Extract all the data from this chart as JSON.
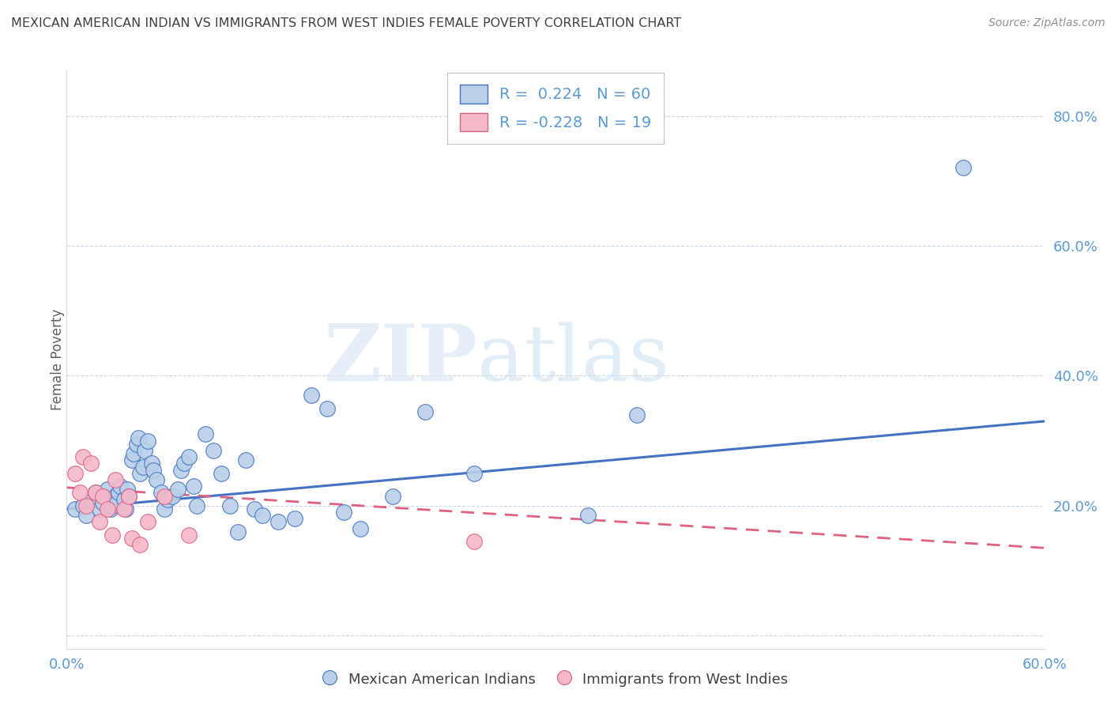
{
  "title": "MEXICAN AMERICAN INDIAN VS IMMIGRANTS FROM WEST INDIES FEMALE POVERTY CORRELATION CHART",
  "source": "Source: ZipAtlas.com",
  "ylabel": "Female Poverty",
  "watermark_zip": "ZIP",
  "watermark_atlas": "atlas",
  "blue_R": 0.224,
  "blue_N": 60,
  "pink_R": -0.228,
  "pink_N": 19,
  "blue_color": "#b8d0e8",
  "pink_color": "#f5b8c8",
  "blue_line_color": "#4472c4",
  "pink_line_color": "#e06080",
  "title_color": "#404040",
  "axis_color": "#5b9bd5",
  "legend_label_blue": "Mexican American Indians",
  "legend_label_pink": "Immigrants from West Indies",
  "xlim": [
    0.0,
    0.6
  ],
  "ylim": [
    -0.02,
    0.87
  ],
  "yticks": [
    0.0,
    0.2,
    0.4,
    0.6,
    0.8
  ],
  "ytick_labels": [
    "",
    "20.0%",
    "40.0%",
    "60.0%",
    "80.0%"
  ],
  "xtick_labels": [
    "0.0%",
    "",
    "",
    "",
    "",
    "",
    "60.0%"
  ],
  "blue_x": [
    0.005,
    0.01,
    0.012,
    0.015,
    0.018,
    0.02,
    0.022,
    0.023,
    0.025,
    0.027,
    0.028,
    0.03,
    0.031,
    0.032,
    0.033,
    0.035,
    0.036,
    0.037,
    0.038,
    0.04,
    0.041,
    0.043,
    0.044,
    0.045,
    0.047,
    0.048,
    0.05,
    0.052,
    0.053,
    0.055,
    0.058,
    0.06,
    0.062,
    0.065,
    0.068,
    0.07,
    0.072,
    0.075,
    0.078,
    0.08,
    0.085,
    0.09,
    0.095,
    0.1,
    0.105,
    0.11,
    0.115,
    0.12,
    0.13,
    0.14,
    0.15,
    0.16,
    0.17,
    0.18,
    0.2,
    0.22,
    0.25,
    0.32,
    0.35,
    0.55
  ],
  "blue_y": [
    0.195,
    0.2,
    0.185,
    0.21,
    0.22,
    0.195,
    0.205,
    0.215,
    0.225,
    0.195,
    0.2,
    0.215,
    0.205,
    0.22,
    0.23,
    0.21,
    0.195,
    0.225,
    0.215,
    0.27,
    0.28,
    0.295,
    0.305,
    0.25,
    0.26,
    0.285,
    0.3,
    0.265,
    0.255,
    0.24,
    0.22,
    0.195,
    0.21,
    0.215,
    0.225,
    0.255,
    0.265,
    0.275,
    0.23,
    0.2,
    0.31,
    0.285,
    0.25,
    0.2,
    0.16,
    0.27,
    0.195,
    0.185,
    0.175,
    0.18,
    0.37,
    0.35,
    0.19,
    0.165,
    0.215,
    0.345,
    0.25,
    0.185,
    0.34,
    0.72
  ],
  "pink_x": [
    0.005,
    0.008,
    0.01,
    0.012,
    0.015,
    0.018,
    0.02,
    0.022,
    0.025,
    0.028,
    0.03,
    0.035,
    0.038,
    0.04,
    0.045,
    0.05,
    0.06,
    0.075,
    0.25
  ],
  "pink_y": [
    0.25,
    0.22,
    0.275,
    0.2,
    0.265,
    0.22,
    0.175,
    0.215,
    0.195,
    0.155,
    0.24,
    0.195,
    0.215,
    0.15,
    0.14,
    0.175,
    0.215,
    0.155,
    0.145
  ],
  "blue_trend_x0": 0.0,
  "blue_trend_x1": 0.6,
  "blue_trend_y0": 0.195,
  "blue_trend_y1": 0.33,
  "pink_trend_x0": 0.0,
  "pink_trend_x1": 0.6,
  "pink_trend_y0": 0.228,
  "pink_trend_y1": 0.135
}
